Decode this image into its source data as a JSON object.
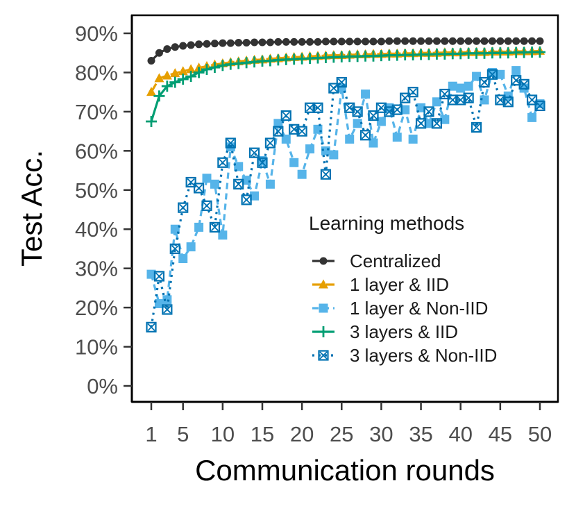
{
  "chart_data": {
    "type": "line",
    "xlabel": "Communication rounds",
    "ylabel": "Test Acc.",
    "xlim": [
      1,
      50
    ],
    "ylim": [
      0,
      90
    ],
    "x_ticks": [
      1,
      5,
      10,
      15,
      20,
      25,
      30,
      35,
      40,
      45,
      50
    ],
    "x_tick_labels": [
      "1",
      "5",
      "10",
      "15",
      "20",
      "25",
      "30",
      "35",
      "40",
      "45",
      "50"
    ],
    "y_ticks": [
      0,
      10,
      20,
      30,
      40,
      50,
      60,
      70,
      80,
      90
    ],
    "y_tick_labels": [
      "0%",
      "10%",
      "20%",
      "30%",
      "40%",
      "50%",
      "60%",
      "70%",
      "80%",
      "90%"
    ],
    "grid": false,
    "legend": {
      "title": "Learning methods",
      "position": "bottom-right-inside"
    },
    "series": [
      {
        "name": "Centralized",
        "color": "#333333",
        "marker": "circle",
        "line": "solid",
        "values": [
          83.0,
          85.0,
          86.0,
          86.5,
          86.8,
          87.0,
          87.2,
          87.3,
          87.4,
          87.5,
          87.5,
          87.6,
          87.6,
          87.7,
          87.7,
          87.7,
          87.8,
          87.8,
          87.8,
          87.8,
          87.8,
          87.8,
          87.9,
          87.9,
          87.9,
          87.9,
          87.9,
          87.9,
          87.9,
          87.9,
          88.0,
          88.0,
          88.0,
          88.0,
          88.0,
          88.0,
          88.0,
          88.0,
          88.0,
          88.0,
          88.0,
          88.0,
          88.0,
          88.0,
          88.0,
          88.0,
          88.0,
          88.0,
          88.0,
          88.0
        ]
      },
      {
        "name": "1 layer & IID",
        "color": "#E69F00",
        "marker": "triangle",
        "line": "dashed-long",
        "values": [
          75.0,
          78.5,
          79.2,
          79.8,
          80.3,
          80.8,
          81.2,
          81.6,
          82.0,
          82.3,
          82.6,
          82.8,
          83.0,
          83.2,
          83.3,
          83.5,
          83.6,
          83.8,
          83.9,
          84.0,
          84.1,
          84.2,
          84.3,
          84.4,
          84.4,
          84.5,
          84.6,
          84.6,
          84.7,
          84.7,
          84.8,
          84.8,
          84.9,
          84.9,
          85.0,
          85.0,
          85.0,
          85.1,
          85.1,
          85.1,
          85.2,
          85.2,
          85.2,
          85.3,
          85.3,
          85.3,
          85.4,
          85.4,
          85.4,
          85.5
        ]
      },
      {
        "name": "1 layer & Non-IID",
        "color": "#56B4E9",
        "marker": "square",
        "line": "dashed",
        "values": [
          28.5,
          21.0,
          22.0,
          40.0,
          32.5,
          35.5,
          40.5,
          53.0,
          51.5,
          38.5,
          61.0,
          56.0,
          52.5,
          48.5,
          57.5,
          51.5,
          67.0,
          63.0,
          57.0,
          54.0,
          60.5,
          65.5,
          60.0,
          59.0,
          76.0,
          63.0,
          67.0,
          74.5,
          62.0,
          67.5,
          71.0,
          63.5,
          70.5,
          63.0,
          71.0,
          67.0,
          72.5,
          68.0,
          76.5,
          76.0,
          76.5,
          79.0,
          73.0,
          80.0,
          79.5,
          74.0,
          80.5,
          76.0,
          68.5,
          72.0
        ]
      },
      {
        "name": "3 layers & IID",
        "color": "#009E73",
        "marker": "plus",
        "line": "solid",
        "values": [
          67.5,
          74.0,
          76.5,
          77.5,
          78.3,
          79.0,
          80.0,
          80.8,
          81.3,
          81.8,
          82.1,
          82.3,
          82.5,
          82.7,
          82.9,
          83.0,
          83.2,
          83.3,
          83.4,
          83.5,
          83.6,
          83.7,
          83.8,
          83.9,
          84.0,
          84.1,
          84.1,
          84.2,
          84.2,
          84.3,
          84.4,
          84.4,
          84.5,
          84.5,
          84.6,
          84.6,
          84.7,
          84.7,
          84.8,
          84.8,
          84.9,
          84.9,
          84.9,
          85.0,
          85.0,
          85.0,
          85.1,
          85.1,
          85.2,
          85.2
        ]
      },
      {
        "name": "3 layers & Non-IID",
        "color": "#0072B2",
        "marker": "square-x",
        "line": "dotted",
        "values": [
          15.0,
          28.0,
          19.5,
          35.0,
          45.5,
          52.0,
          50.5,
          46.0,
          40.5,
          57.0,
          62.0,
          51.5,
          47.5,
          59.5,
          57.0,
          62.0,
          65.0,
          69.0,
          65.5,
          65.0,
          71.0,
          71.0,
          54.0,
          76.0,
          77.5,
          71.0,
          70.0,
          64.0,
          69.0,
          71.0,
          70.0,
          70.5,
          73.5,
          75.0,
          67.0,
          70.0,
          67.0,
          74.5,
          73.0,
          73.0,
          73.5,
          66.0,
          77.5,
          79.5,
          73.0,
          72.5,
          78.0,
          77.0,
          73.0,
          71.5
        ]
      }
    ]
  }
}
